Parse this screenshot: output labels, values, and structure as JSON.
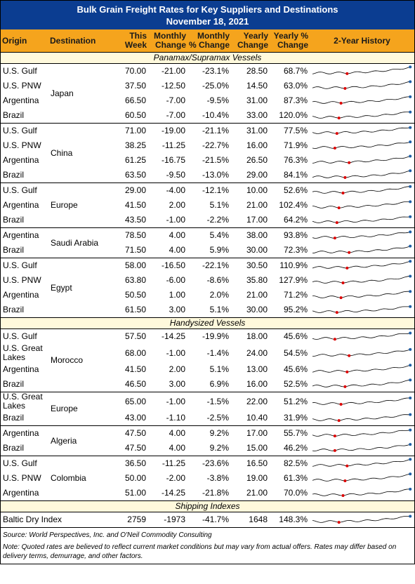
{
  "title": "Bulk Grain Freight Rates for Key Suppliers and Destinations",
  "subtitle": "November 18, 2021",
  "header": {
    "columns": [
      "Origin",
      "Destination",
      "This Week",
      "Monthly Change",
      "Monthly % Change",
      "Yearly Change",
      "Yearly % Change",
      "2-Year History"
    ]
  },
  "sections": [
    {
      "title": "Panamax/Supramax Vessels",
      "groups": [
        {
          "destination": "Japan",
          "rows": [
            [
              "U.S. Gulf",
              "70.00",
              "-21.00",
              "-23.1%",
              "28.50",
              "68.7%"
            ],
            [
              "U.S. PNW",
              "37.50",
              "-12.50",
              "-25.0%",
              "14.50",
              "63.0%"
            ],
            [
              "Argentina",
              "66.50",
              "-7.00",
              "-9.5%",
              "31.00",
              "87.3%"
            ],
            [
              "Brazil",
              "60.50",
              "-7.00",
              "-10.4%",
              "33.00",
              "120.0%"
            ]
          ]
        },
        {
          "destination": "China",
          "rows": [
            [
              "U.S. Gulf",
              "71.00",
              "-19.00",
              "-21.1%",
              "31.00",
              "77.5%"
            ],
            [
              "U.S. PNW",
              "38.25",
              "-11.25",
              "-22.7%",
              "16.00",
              "71.9%"
            ],
            [
              "Argentina",
              "61.25",
              "-16.75",
              "-21.5%",
              "26.50",
              "76.3%"
            ],
            [
              "Brazil",
              "63.50",
              "-9.50",
              "-13.0%",
              "29.00",
              "84.1%"
            ]
          ]
        },
        {
          "destination": "Europe",
          "rows": [
            [
              "U.S. Gulf",
              "29.00",
              "-4.00",
              "-12.1%",
              "10.00",
              "52.6%"
            ],
            [
              "Argentina",
              "41.50",
              "2.00",
              "5.1%",
              "21.00",
              "102.4%"
            ],
            [
              "Brazil",
              "43.50",
              "-1.00",
              "-2.2%",
              "17.00",
              "64.2%"
            ]
          ]
        },
        {
          "destination": "Saudi Arabia",
          "rows": [
            [
              "Argentina",
              "78.50",
              "4.00",
              "5.4%",
              "38.00",
              "93.8%"
            ],
            [
              "Brazil",
              "71.50",
              "4.00",
              "5.9%",
              "30.00",
              "72.3%"
            ]
          ]
        },
        {
          "destination": "Egypt",
          "rows": [
            [
              "U.S. Gulf",
              "58.00",
              "-16.50",
              "-22.1%",
              "30.50",
              "110.9%"
            ],
            [
              "U.S. PNW",
              "63.80",
              "-6.00",
              "-8.6%",
              "35.80",
              "127.9%"
            ],
            [
              "Argentina",
              "50.50",
              "1.00",
              "2.0%",
              "21.00",
              "71.2%"
            ],
            [
              "Brazil",
              "61.50",
              "3.00",
              "5.1%",
              "30.00",
              "95.2%"
            ]
          ]
        }
      ]
    },
    {
      "title": "Handysized Vessels",
      "groups": [
        {
          "destination": "Morocco",
          "rows": [
            [
              "U.S. Gulf",
              "57.50",
              "-14.25",
              "-19.9%",
              "18.00",
              "45.6%"
            ],
            [
              "U.S. Great Lakes",
              "68.00",
              "-1.00",
              "-1.4%",
              "24.00",
              "54.5%"
            ],
            [
              "Argentina",
              "41.50",
              "2.00",
              "5.1%",
              "13.00",
              "45.6%"
            ],
            [
              "Brazil",
              "46.50",
              "3.00",
              "6.9%",
              "16.00",
              "52.5%"
            ]
          ]
        },
        {
          "destination": "Europe",
          "rows": [
            [
              "U.S. Great Lakes",
              "65.00",
              "-1.00",
              "-1.5%",
              "22.00",
              "51.2%"
            ],
            [
              "Brazil",
              "43.00",
              "-1.10",
              "-2.5%",
              "10.40",
              "31.9%"
            ]
          ]
        },
        {
          "destination": "Algeria",
          "rows": [
            [
              "Argentina",
              "47.50",
              "4.00",
              "9.2%",
              "17.00",
              "55.7%"
            ],
            [
              "Brazil",
              "47.50",
              "4.00",
              "9.2%",
              "15.00",
              "46.2%"
            ]
          ]
        },
        {
          "destination": "Colombia",
          "rows": [
            [
              "U.S. Gulf",
              "36.50",
              "-11.25",
              "-23.6%",
              "16.50",
              "82.5%"
            ],
            [
              "U.S. PNW",
              "50.00",
              "-2.00",
              "-3.8%",
              "19.00",
              "61.3%"
            ],
            [
              "Argentina",
              "51.00",
              "-14.25",
              "-21.8%",
              "21.00",
              "70.0%"
            ]
          ]
        }
      ]
    },
    {
      "title": "Shipping Indexes",
      "groups": [
        {
          "rows": [
            [
              "Baltic Dry Index",
              "2759",
              "-1973",
              "-41.7%",
              "1648",
              "148.3%"
            ]
          ]
        }
      ]
    }
  ],
  "source": "Source: World Perspectives, Inc. and O'Neil Commodity Consulting",
  "note": "Note: Quoted rates are believed to reflect current market conditions but may vary from actual offers. Rates may differ based on delivery terms, demurrage, and other factors."
}
